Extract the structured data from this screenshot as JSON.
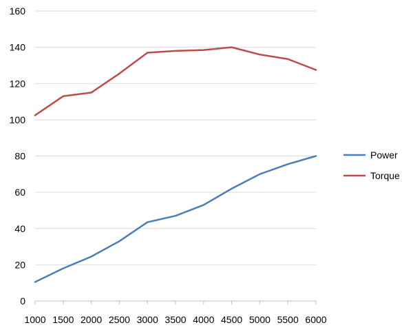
{
  "chart_data": {
    "type": "line",
    "title": "",
    "xlabel": "",
    "ylabel": "",
    "x": [
      1000,
      1500,
      2000,
      2500,
      3000,
      3500,
      4000,
      4500,
      5000,
      5500,
      6000
    ],
    "ylim": [
      0,
      160
    ],
    "yticks": [
      0,
      20,
      40,
      60,
      80,
      100,
      120,
      140,
      160
    ],
    "grid": true,
    "legend_position": "right",
    "series": [
      {
        "name": "Power",
        "color": "#4a7ebb",
        "values": [
          10.5,
          18,
          24.5,
          33,
          43.5,
          47,
          53,
          62,
          70,
          75.5,
          80
        ]
      },
      {
        "name": "Torque",
        "color": "#be4b48",
        "values": [
          102.5,
          113,
          115,
          125.5,
          137,
          138,
          138.5,
          140,
          136,
          133.5,
          127.5
        ]
      }
    ]
  }
}
